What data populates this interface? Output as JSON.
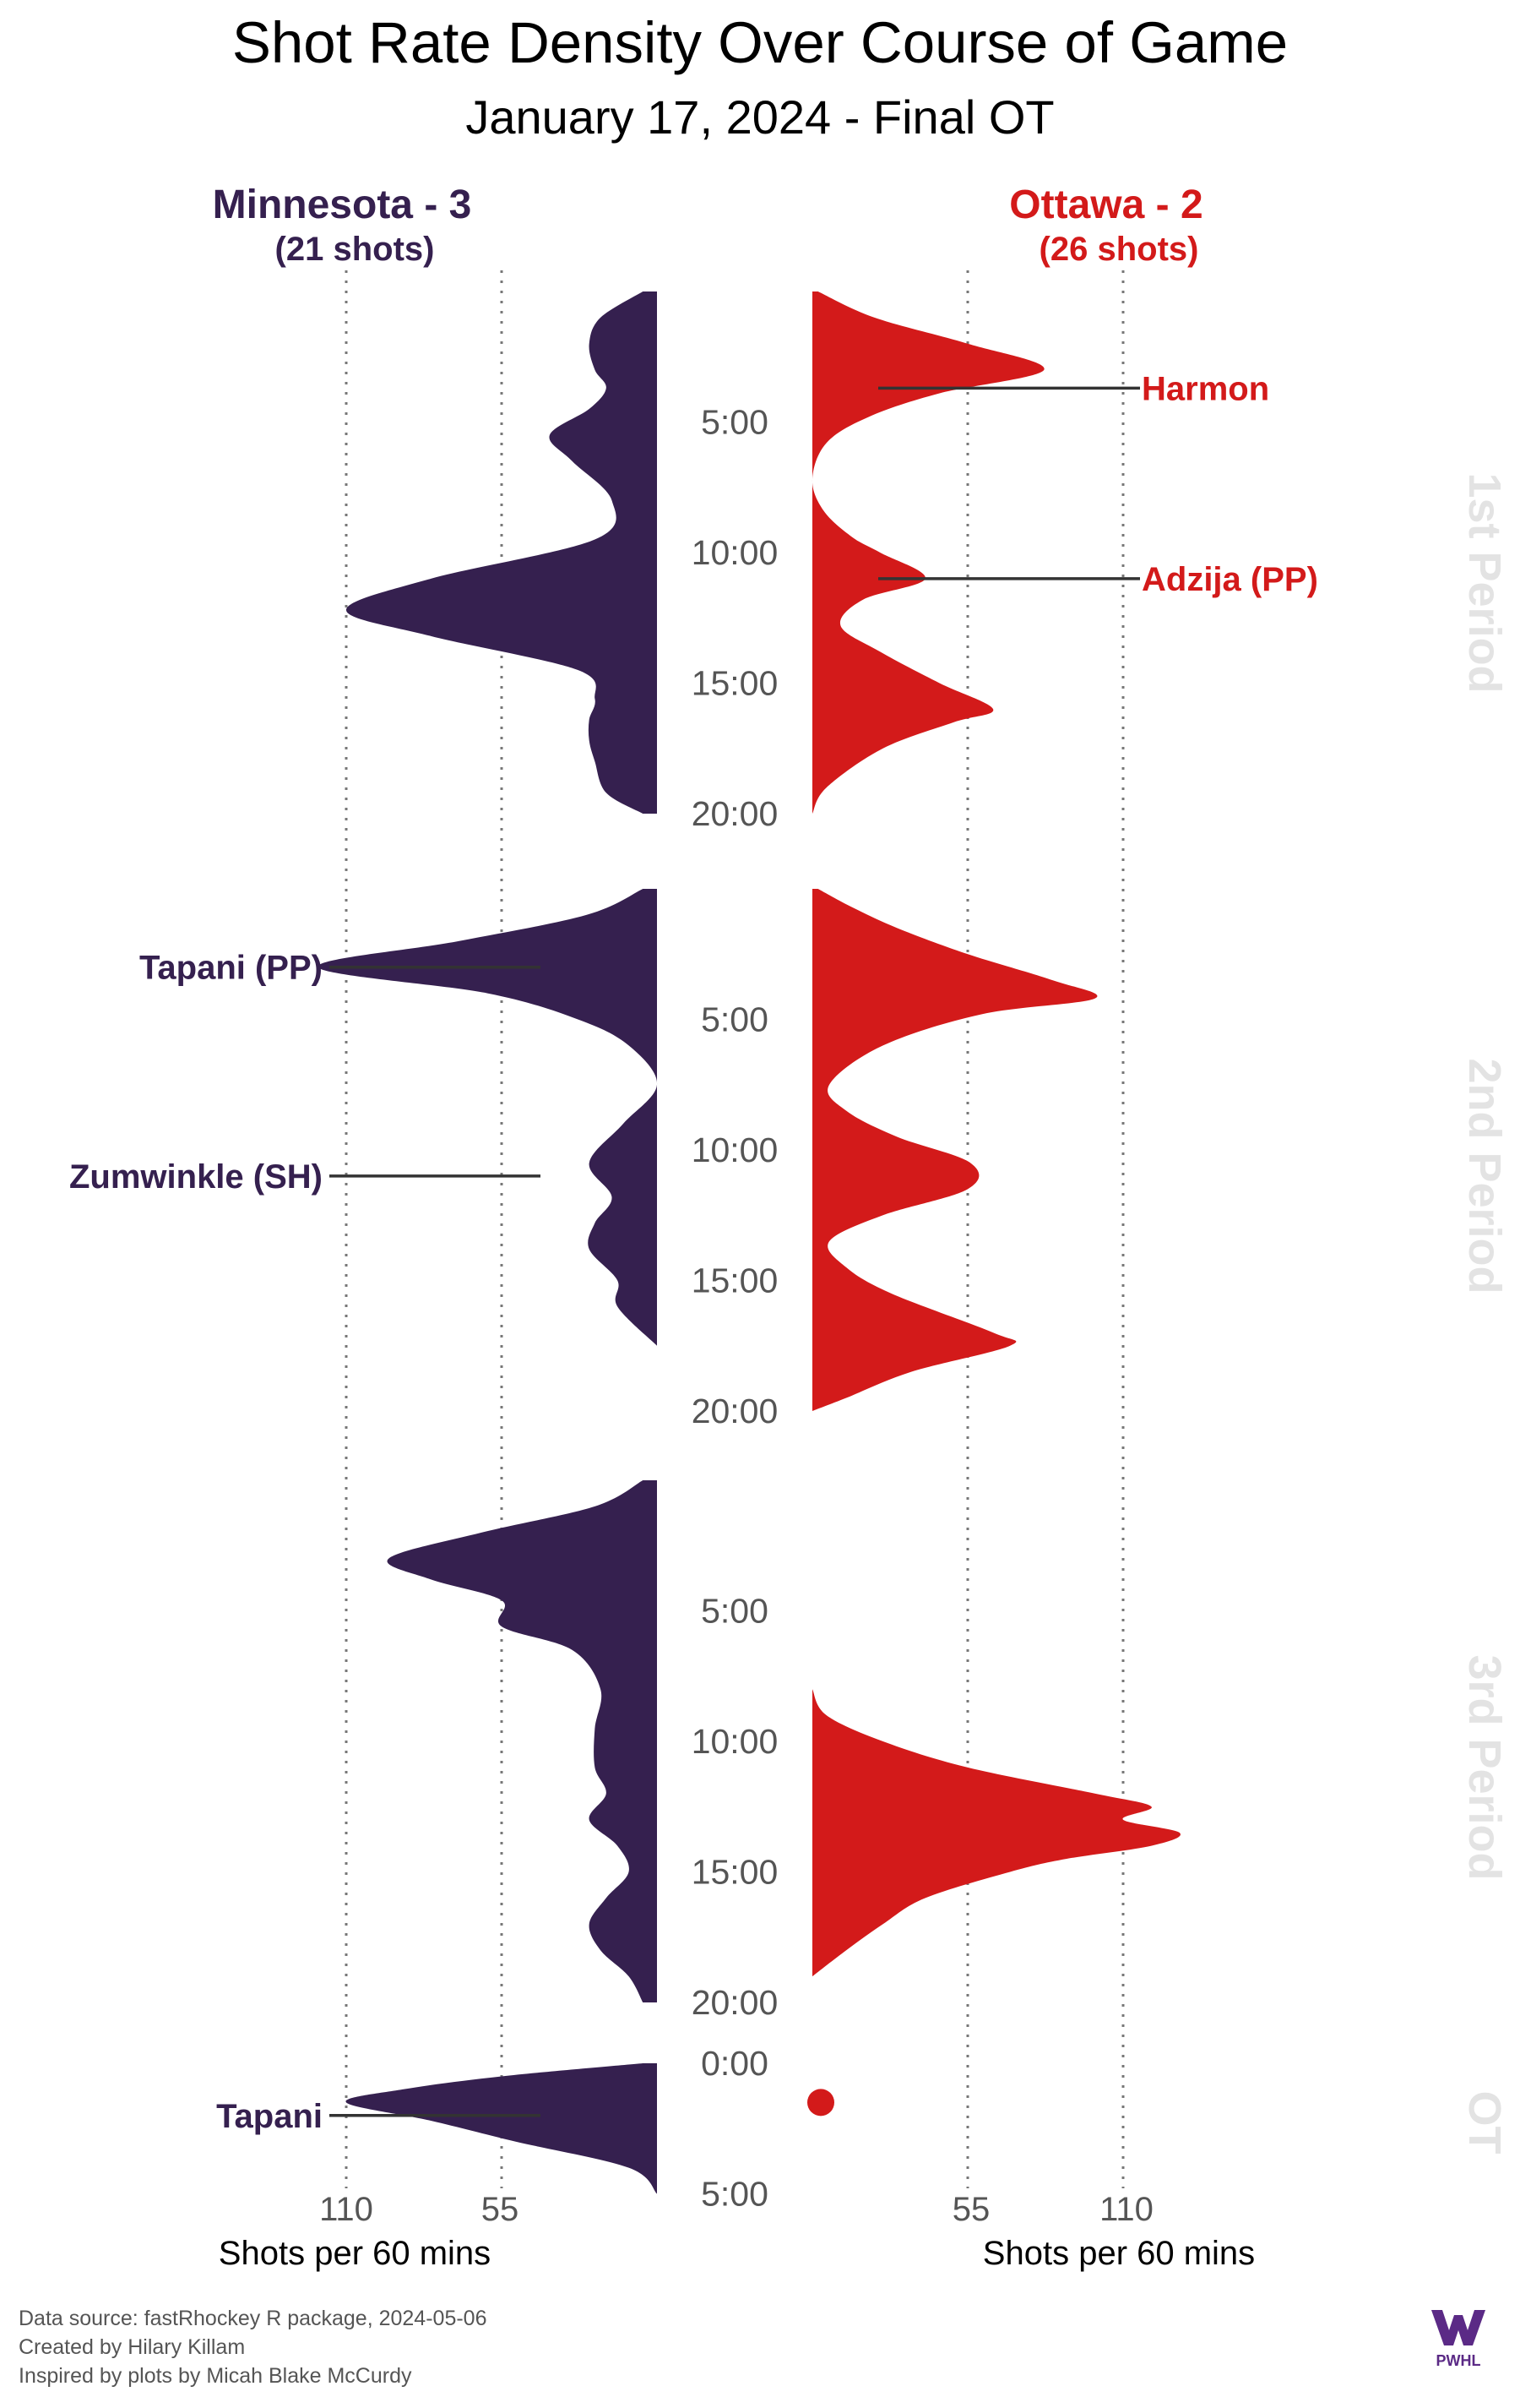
{
  "title": "Shot Rate Density Over Course of Game",
  "subtitle": "January 17, 2024 - Final OT",
  "teams": {
    "home": {
      "name": "Minnesota - 3",
      "shots": "(21 shots)",
      "color": "#35204f"
    },
    "away": {
      "name": "Ottawa - 2",
      "shots": "(26 shots)",
      "color": "#d31a1a"
    }
  },
  "axis": {
    "title": "Shots per 60 mins",
    "ticks": [
      110,
      55
    ],
    "tick_labels": [
      "110",
      "55"
    ]
  },
  "periods": [
    {
      "label": "1st Period",
      "time_labels": [
        "5:00",
        "10:00",
        "15:00",
        "20:00"
      ]
    },
    {
      "label": "2nd Period",
      "time_labels": [
        "5:00",
        "10:00",
        "15:00",
        "20:00"
      ]
    },
    {
      "label": "3rd Period",
      "time_labels": [
        "5:00",
        "10:00",
        "15:00",
        "20:00"
      ]
    },
    {
      "label": "OT",
      "time_labels": [
        "0:00",
        "5:00"
      ]
    }
  ],
  "caption": {
    "line1": "Data source: fastRhockey R package, 2024-05-06",
    "line2": "Created by Hilary Killam",
    "line3": "Inspired by plots by Micah Blake McCurdy"
  },
  "logo_text": "PWHL",
  "chart_data": {
    "type": "area",
    "x_unit": "minutes into period",
    "y_unit": "Shots per 60 mins",
    "y_range": [
      0,
      110
    ],
    "series": [
      {
        "name": "Minnesota",
        "side": "left",
        "color": "#35204f",
        "periods": [
          {
            "period": "1st Period",
            "points": [
              [
                0,
                5
              ],
              [
                1,
                20
              ],
              [
                2,
                24
              ],
              [
                3,
                22
              ],
              [
                3.7,
                18
              ],
              [
                4.5,
                24
              ],
              [
                5.5,
                38
              ],
              [
                6.5,
                30
              ],
              [
                8,
                16
              ],
              [
                9.5,
                22
              ],
              [
                11,
                80
              ],
              [
                12.2,
                110
              ],
              [
                13.2,
                80
              ],
              [
                14.5,
                28
              ],
              [
                15.6,
                22
              ],
              [
                16.4,
                24
              ],
              [
                17.2,
                24
              ],
              [
                18,
                22
              ],
              [
                19.2,
                18
              ],
              [
                20,
                5
              ]
            ]
          },
          {
            "period": "2nd Period",
            "points": [
              [
                0,
                5
              ],
              [
                1,
                25
              ],
              [
                2,
                70
              ],
              [
                3,
                120
              ],
              [
                4,
                60
              ],
              [
                5,
                28
              ],
              [
                6,
                10
              ],
              [
                7.5,
                0
              ],
              [
                9,
                12
              ],
              [
                10.5,
                24
              ],
              [
                11.8,
                16
              ],
              [
                12.8,
                22
              ],
              [
                13.8,
                24
              ],
              [
                15,
                14
              ],
              [
                16,
                14
              ],
              [
                17.5,
                0
              ]
            ]
          },
          {
            "period": "3rd Period",
            "points": [
              [
                0,
                5
              ],
              [
                1,
                22
              ],
              [
                2,
                62
              ],
              [
                3,
                95
              ],
              [
                3.8,
                80
              ],
              [
                4.6,
                55
              ],
              [
                5.6,
                55
              ],
              [
                6.5,
                30
              ],
              [
                8,
                20
              ],
              [
                9.5,
                22
              ],
              [
                11,
                22
              ],
              [
                12,
                18
              ],
              [
                13,
                24
              ],
              [
                14,
                14
              ],
              [
                15,
                10
              ],
              [
                16,
                18
              ],
              [
                17,
                24
              ],
              [
                18,
                20
              ],
              [
                19,
                10
              ],
              [
                20,
                5
              ]
            ]
          },
          {
            "period": "OT",
            "points": [
              [
                0,
                5
              ],
              [
                0.5,
                55
              ],
              [
                1,
                90
              ],
              [
                1.5,
                110
              ],
              [
                2.2,
                80
              ],
              [
                3,
                50
              ],
              [
                4,
                10
              ],
              [
                5,
                0
              ]
            ]
          }
        ]
      },
      {
        "name": "Ottawa",
        "side": "right",
        "color": "#d31a1a",
        "periods": [
          {
            "period": "1st Period",
            "points": [
              [
                0,
                2
              ],
              [
                1,
                22
              ],
              [
                2,
                55
              ],
              [
                3,
                82
              ],
              [
                3.9,
                45
              ],
              [
                4.8,
                20
              ],
              [
                5.8,
                5
              ],
              [
                7.2,
                0
              ],
              [
                8.4,
                4
              ],
              [
                9.4,
                14
              ],
              [
                10,
                24
              ],
              [
                11,
                40
              ],
              [
                11.8,
                18
              ],
              [
                12.8,
                10
              ],
              [
                13.8,
                24
              ],
              [
                15,
                45
              ],
              [
                16,
                64
              ],
              [
                16.5,
                50
              ],
              [
                17.5,
                25
              ],
              [
                19,
                5
              ],
              [
                20,
                0
              ]
            ]
          },
          {
            "period": "2nd Period",
            "points": [
              [
                0,
                2
              ],
              [
                0.7,
                14
              ],
              [
                1.5,
                30
              ],
              [
                2.5,
                55
              ],
              [
                3.5,
                85
              ],
              [
                4.2,
                100
              ],
              [
                4.8,
                60
              ],
              [
                6,
                25
              ],
              [
                7.5,
                6
              ],
              [
                8.5,
                12
              ],
              [
                9.5,
                30
              ],
              [
                10.5,
                56
              ],
              [
                11.5,
                55
              ],
              [
                12.5,
                25
              ],
              [
                13.5,
                6
              ],
              [
                14.5,
                12
              ],
              [
                15.5,
                28
              ],
              [
                17,
                64
              ],
              [
                17.5,
                70
              ],
              [
                18.5,
                35
              ],
              [
                19.5,
                12
              ],
              [
                20,
                0
              ]
            ]
          },
          {
            "period": "3rd Period",
            "points": [
              [
                8,
                0
              ],
              [
                9,
                5
              ],
              [
                10,
                25
              ],
              [
                11,
                55
              ],
              [
                12,
                100
              ],
              [
                12.5,
                120
              ],
              [
                13,
                110
              ],
              [
                13.5,
                130
              ],
              [
                14,
                120
              ],
              [
                14.5,
                90
              ],
              [
                15,
                70
              ],
              [
                16,
                40
              ],
              [
                17,
                25
              ],
              [
                18,
                12
              ],
              [
                19,
                0
              ]
            ]
          },
          {
            "period": "OT",
            "points": []
          }
        ]
      }
    ],
    "ot_single_shot": {
      "team": "Ottawa",
      "time": 1.5
    },
    "goals": [
      {
        "team": "Ottawa",
        "player": "Harmon",
        "period": "1st Period",
        "time": 3.7
      },
      {
        "team": "Ottawa",
        "player": "Adzija (PP)",
        "period": "1st Period",
        "time": 11.0
      },
      {
        "team": "Minnesota",
        "player": "Tapani (PP)",
        "period": "2nd Period",
        "time": 3.0
      },
      {
        "team": "Minnesota",
        "player": "Zumwinkle (SH)",
        "period": "2nd Period",
        "time": 11.0
      },
      {
        "team": "Minnesota",
        "player": "Tapani",
        "period": "OT",
        "time": 2.0
      }
    ]
  }
}
